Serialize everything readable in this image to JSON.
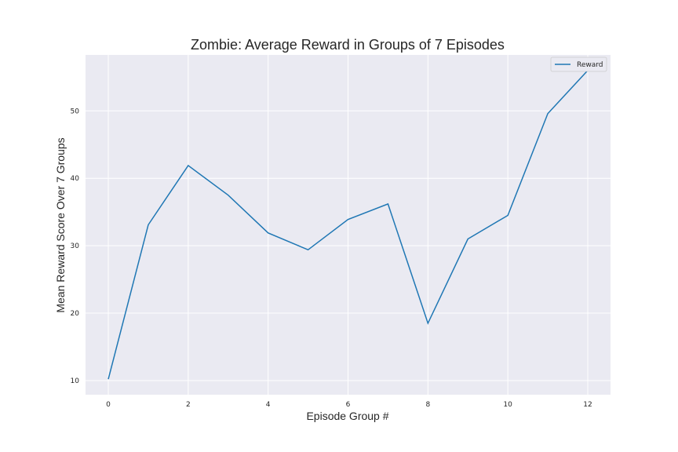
{
  "chart_data": {
    "type": "line",
    "title": "Zombie: Average Reward in Groups of 7 Episodes",
    "xlabel": "Episode Group #",
    "ylabel": "Mean Reward Score Over 7 Groups",
    "x": [
      0,
      1,
      2,
      3,
      4,
      5,
      6,
      7,
      8,
      9,
      10,
      11,
      12
    ],
    "series": [
      {
        "name": "Reward",
        "color": "#1f77b4",
        "values": [
          10.2,
          33.1,
          41.9,
          37.5,
          31.9,
          29.4,
          33.9,
          36.2,
          18.5,
          31.0,
          34.5,
          49.6,
          56.0
        ]
      }
    ],
    "xticks": [
      0,
      2,
      4,
      6,
      8,
      10,
      12
    ],
    "yticks": [
      10,
      20,
      30,
      40,
      50
    ],
    "xlim": [
      -0.57,
      12.57
    ],
    "ylim": [
      7.9,
      58.3
    ],
    "grid": true,
    "legend_position": "top-right",
    "background_color": "#eaeaf2",
    "grid_color": "#ffffff"
  }
}
